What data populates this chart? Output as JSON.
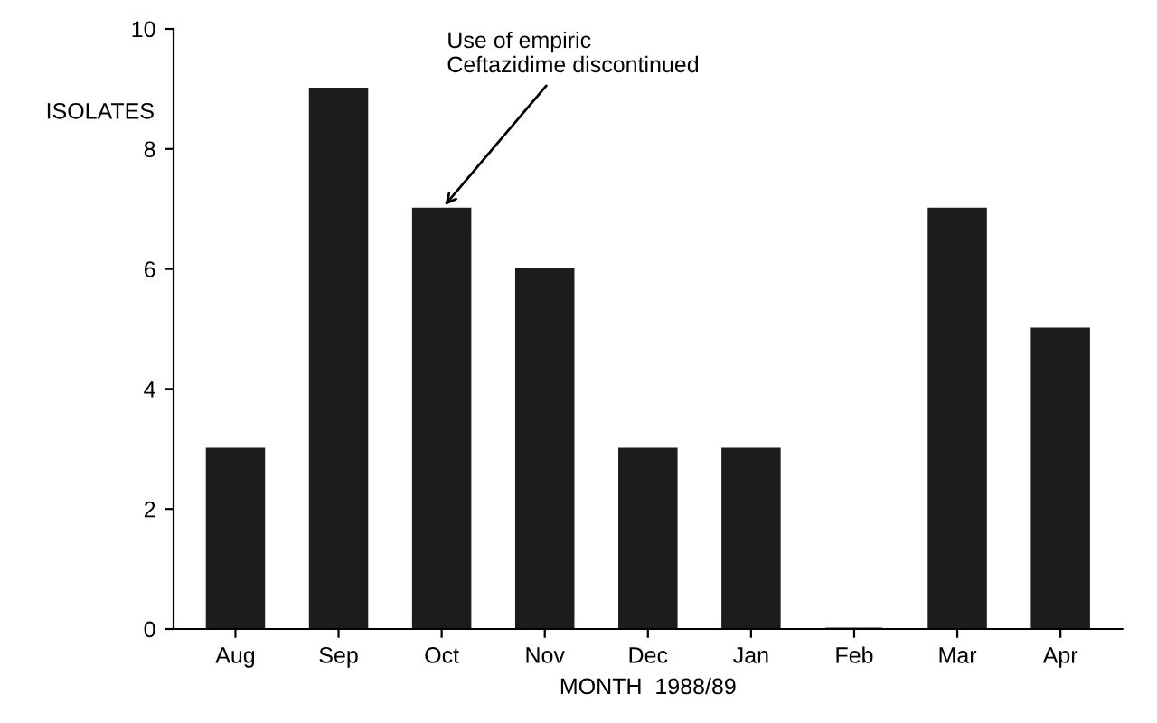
{
  "chart_data": {
    "type": "bar",
    "xlabel": "MONTH  1988/89",
    "ylabel": "ISOLATES",
    "categories": [
      "Aug",
      "Sep",
      "Oct",
      "Nov",
      "Dec",
      "Jan",
      "Feb",
      "Mar",
      "Apr"
    ],
    "values": [
      3,
      9,
      7,
      6,
      3,
      3,
      0,
      7,
      5
    ],
    "color": "#1c1c1c",
    "ylim": [
      0,
      10
    ],
    "yticks": [
      0,
      2,
      4,
      6,
      8,
      10
    ],
    "grid": false,
    "annotations": [
      {
        "text": "Use of empiric\nCeftazidime discontinued",
        "x": "Oct",
        "y": 7
      }
    ]
  }
}
